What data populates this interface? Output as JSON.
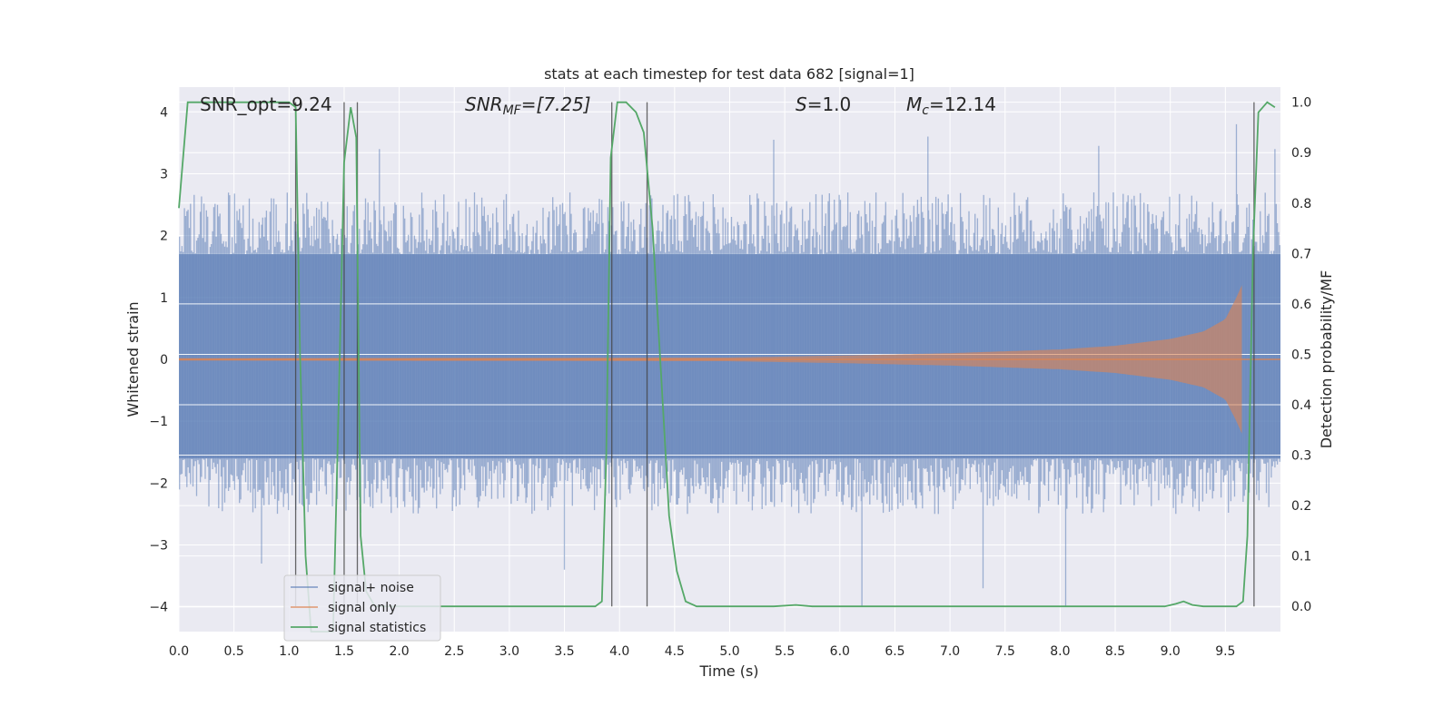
{
  "chart_data": {
    "type": "line",
    "title": "stats at each timestep for test data 682 [signal=1]",
    "xlabel": "Time (s)",
    "ylabel_left": "Whitened strain",
    "ylabel_right": "Detection probability/MF",
    "xlim": [
      0.0,
      10.0
    ],
    "ylim_left": [
      -4.4,
      4.4
    ],
    "ylim_right": [
      -0.05,
      1.03
    ],
    "x_ticks": [
      "0.0",
      "0.5",
      "1.0",
      "1.5",
      "2.0",
      "2.5",
      "3.0",
      "3.5",
      "4.0",
      "4.5",
      "5.0",
      "5.5",
      "6.0",
      "6.5",
      "7.0",
      "7.5",
      "8.0",
      "8.5",
      "9.0",
      "9.5"
    ],
    "y_ticks_left": [
      "−4",
      "−3",
      "−2",
      "−1",
      "0",
      "1",
      "2",
      "3",
      "4"
    ],
    "y_ticks_right": [
      "0.0",
      "0.1",
      "0.2",
      "0.3",
      "0.4",
      "0.5",
      "0.6",
      "0.7",
      "0.8",
      "0.9",
      "1.0"
    ],
    "grid": true,
    "legend_position": "lower-left",
    "annotations": {
      "snr_opt": "SNR_opt=9.24",
      "snr_mf_name": "SNR",
      "snr_mf_sub": "MF",
      "snr_mf_value": "=[7.25]",
      "s_name": "S",
      "s_value": "=1.0",
      "mc_name": "M",
      "mc_sub": "c",
      "mc_value": "=12.14"
    },
    "series": [
      {
        "name": "signal+ noise",
        "color": "#4c72b0",
        "kind": "noise_band",
        "core_band": [
          -1.6,
          1.7
        ],
        "typical_peak": [
          -2.5,
          2.7
        ],
        "extreme_values": [
          [
            0.75,
            -3.3
          ],
          [
            1.82,
            3.4
          ],
          [
            3.5,
            -3.4
          ],
          [
            5.4,
            3.55
          ],
          [
            6.2,
            -4.0
          ],
          [
            6.8,
            3.6
          ],
          [
            7.3,
            -3.7
          ],
          [
            8.05,
            -4.0
          ],
          [
            8.35,
            3.45
          ],
          [
            9.6,
            3.8
          ],
          [
            9.95,
            3.4
          ]
        ]
      },
      {
        "name": "signal only",
        "color": "#dd8452",
        "kind": "chirp",
        "t_merge": 9.65,
        "envelope": [
          [
            0.0,
            0.02
          ],
          [
            5.0,
            0.03
          ],
          [
            6.0,
            0.06
          ],
          [
            7.0,
            0.1
          ],
          [
            8.0,
            0.16
          ],
          [
            8.5,
            0.22
          ],
          [
            9.0,
            0.33
          ],
          [
            9.3,
            0.45
          ],
          [
            9.5,
            0.65
          ],
          [
            9.6,
            1.0
          ],
          [
            9.65,
            1.2
          ],
          [
            9.68,
            0.0
          ]
        ]
      },
      {
        "name": "signal statistics",
        "color": "#55a868",
        "kind": "line",
        "axis": "right",
        "points": [
          [
            0.0,
            0.79
          ],
          [
            0.08,
            1.0
          ],
          [
            0.2,
            1.0
          ],
          [
            0.5,
            1.0
          ],
          [
            0.8,
            1.0
          ],
          [
            1.0,
            1.0
          ],
          [
            1.06,
            0.99
          ],
          [
            1.1,
            0.5
          ],
          [
            1.15,
            0.1
          ],
          [
            1.2,
            -0.05
          ],
          [
            1.4,
            -0.05
          ],
          [
            1.45,
            0.4
          ],
          [
            1.5,
            0.88
          ],
          [
            1.56,
            0.99
          ],
          [
            1.61,
            0.93
          ],
          [
            1.65,
            0.14
          ],
          [
            1.7,
            0.03
          ],
          [
            1.78,
            0.0
          ],
          [
            1.9,
            0.0
          ],
          [
            2.5,
            0.0
          ],
          [
            3.0,
            0.0
          ],
          [
            3.5,
            0.0
          ],
          [
            3.78,
            0.0
          ],
          [
            3.84,
            0.01
          ],
          [
            3.88,
            0.3
          ],
          [
            3.92,
            0.89
          ],
          [
            3.98,
            1.0
          ],
          [
            4.06,
            1.0
          ],
          [
            4.15,
            0.98
          ],
          [
            4.22,
            0.94
          ],
          [
            4.3,
            0.75
          ],
          [
            4.38,
            0.45
          ],
          [
            4.45,
            0.18
          ],
          [
            4.52,
            0.07
          ],
          [
            4.6,
            0.01
          ],
          [
            4.7,
            0.0
          ],
          [
            5.0,
            0.0
          ],
          [
            5.4,
            0.0
          ],
          [
            5.6,
            0.003
          ],
          [
            5.75,
            0.0
          ],
          [
            6.0,
            0.0
          ],
          [
            7.0,
            0.0
          ],
          [
            8.0,
            0.0
          ],
          [
            8.8,
            0.0
          ],
          [
            8.95,
            0.0
          ],
          [
            9.05,
            0.005
          ],
          [
            9.12,
            0.01
          ],
          [
            9.2,
            0.003
          ],
          [
            9.3,
            0.0
          ],
          [
            9.5,
            0.0
          ],
          [
            9.6,
            0.0
          ],
          [
            9.66,
            0.01
          ],
          [
            9.7,
            0.14
          ],
          [
            9.75,
            0.7
          ],
          [
            9.8,
            0.98
          ],
          [
            9.88,
            1.0
          ],
          [
            9.95,
            0.99
          ]
        ]
      }
    ],
    "vertical_lines_x": [
      1.06,
      1.5,
      1.62,
      3.93,
      4.25,
      9.76
    ]
  }
}
